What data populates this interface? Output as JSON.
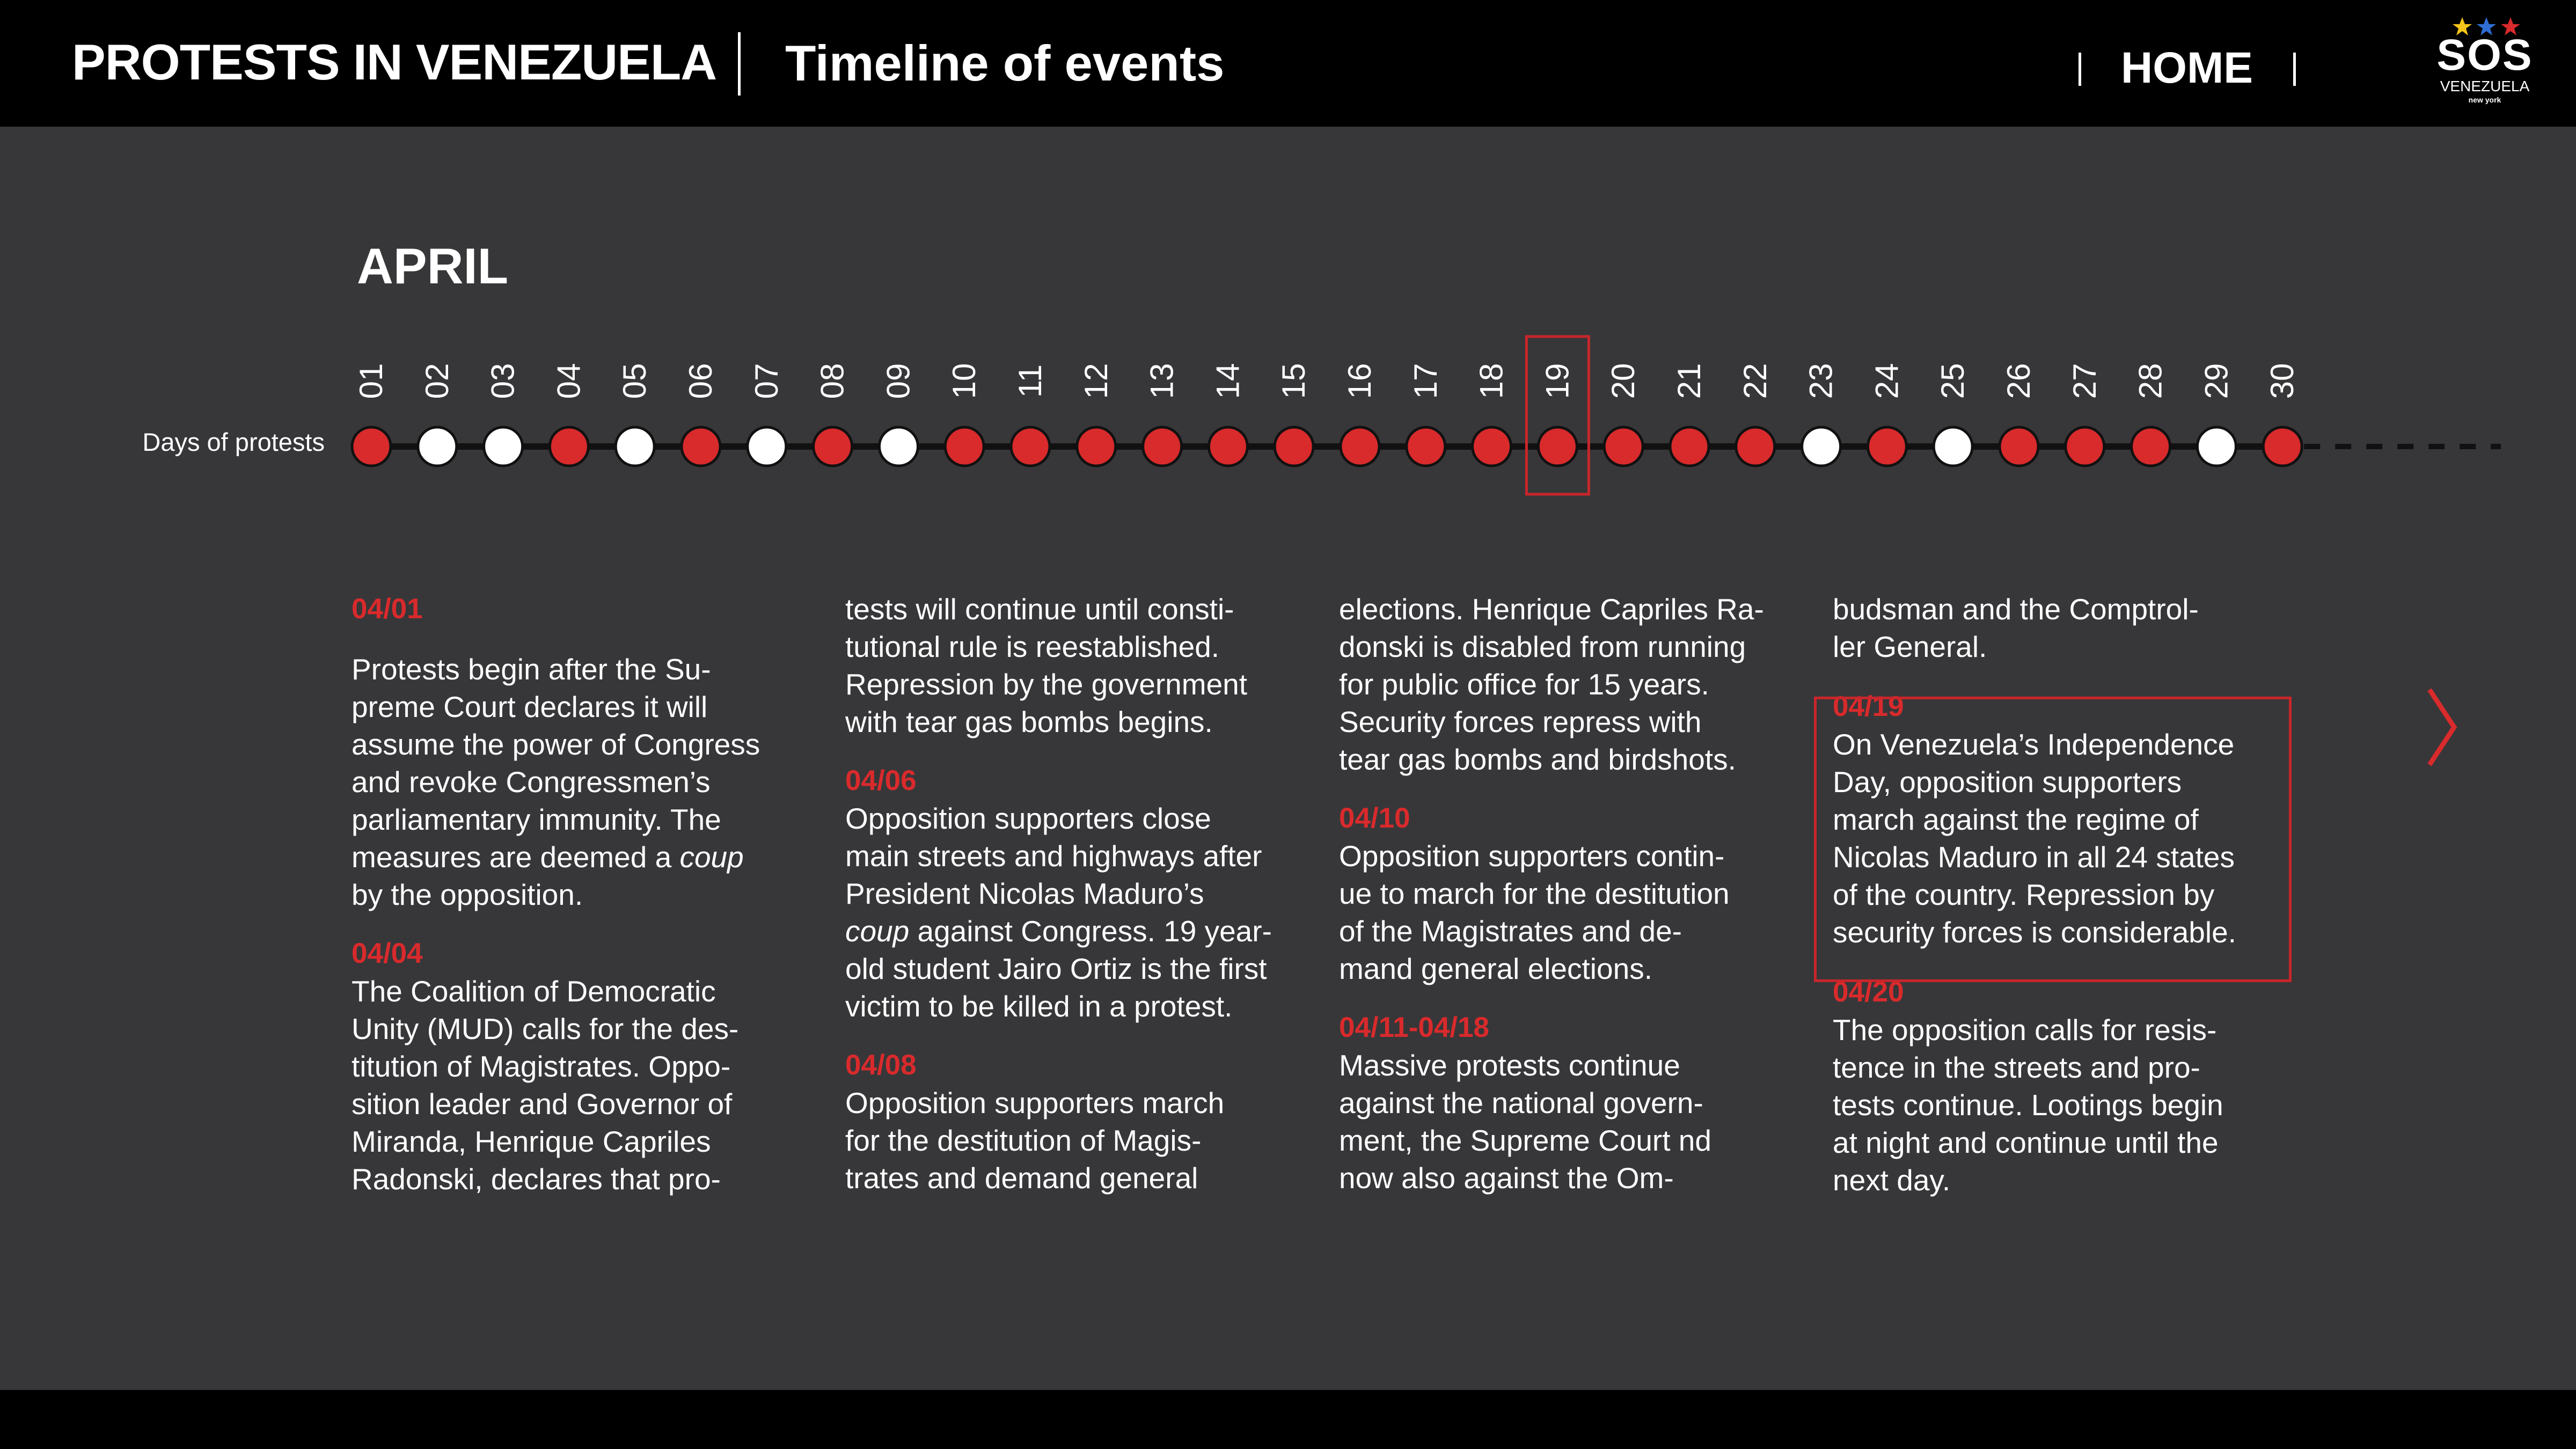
{
  "header": {
    "title": "PROTESTS IN VENEZUELA",
    "subtitle": "Timeline of events",
    "nav_home": "HOME",
    "logo_text": "SOS",
    "logo_sub": "VENEZUELA",
    "logo_sub2": "new york",
    "logo_star_colors": [
      "#f5c518",
      "#2f6fd6",
      "#d92a2c"
    ]
  },
  "timeline": {
    "month": "APRIL",
    "row_label": "Days of protests",
    "days": [
      "01",
      "02",
      "03",
      "04",
      "05",
      "06",
      "07",
      "08",
      "09",
      "10",
      "11",
      "12",
      "13",
      "14",
      "15",
      "16",
      "17",
      "18",
      "19",
      "20",
      "21",
      "22",
      "23",
      "24",
      "25",
      "26",
      "27",
      "28",
      "29",
      "30"
    ],
    "protest_day": [
      true,
      false,
      false,
      true,
      false,
      true,
      false,
      true,
      false,
      true,
      true,
      true,
      true,
      true,
      true,
      true,
      true,
      true,
      true,
      true,
      true,
      true,
      false,
      true,
      false,
      true,
      true,
      true,
      false,
      true
    ],
    "highlighted_day": "19",
    "colors": {
      "protest": "#d92a2c",
      "no_protest": "#ffffff",
      "line": "#111111"
    }
  },
  "events": {
    "e0401_date": "04/01",
    "e0401_text": [
      "Protests begin after the Su-",
      "preme Court declares it will",
      "assume the power of Congress",
      "and revoke Congressmen’s",
      "parliamentary immunity. The",
      "measures are deemed a "
    ],
    "e0401_coup": "coup",
    "e0401_end": "by the opposition.",
    "e0404_date": "04/04",
    "e0404_text": [
      "The Coalition of Democratic",
      "Unity (MUD) calls for the des-",
      "titution of Magistrates. Oppo-",
      "sition leader and Governor of",
      "Miranda, Henrique Capriles",
      "Radonski, declares that pro-"
    ],
    "e0404_cont": [
      "tests will continue until consti-",
      "tutional rule is reestablished.",
      "Repression by the government",
      "with tear gas bombs begins."
    ],
    "e0406_date": "04/06",
    "e0406_text_a": [
      "Opposition supporters close",
      "main streets and highways after",
      "President Nicolas Maduro’s"
    ],
    "e0406_coup": "coup",
    "e0406_text_b": " against Congress. 19 year-",
    "e0406_text_c": [
      "old student Jairo Ortiz is the first",
      "victim to be killed in a protest."
    ],
    "e0408_date": "04/08",
    "e0408_text": [
      "Opposition supporters march",
      "for the destitution of Magis-",
      "trates and demand general"
    ],
    "e0408_cont": [
      "elections. Henrique Capriles Ra-",
      "donski is disabled from running",
      "for public office for 15 years.",
      "Security forces repress with",
      "tear gas bombs and birdshots."
    ],
    "e0410_date": "04/10",
    "e0410_text": [
      "Opposition supporters contin-",
      "ue to march for the destitution",
      "of the Magistrates and de-",
      "mand general elections."
    ],
    "e0411_date": "04/11-04/18",
    "e0411_text": [
      "Massive protests continue",
      "against the national govern-",
      "ment, the Supreme Court nd",
      "now also against the Om-"
    ],
    "e0411_cont": [
      "budsman and the Comptrol-",
      "ler General."
    ],
    "e0419_date": "04/19",
    "e0419_text": [
      "On Venezuela’s Independence",
      "Day, opposition supporters",
      "march against the regime of",
      "Nicolas Maduro in all 24 states",
      "of the country. Repression by",
      "security forces is considerable."
    ],
    "e0420_date": "04/20",
    "e0420_text": [
      "The opposition calls for resis-",
      "tence in the streets and pro-",
      "tests continue. Lootings begin",
      "at night and continue until the",
      "next day."
    ]
  }
}
